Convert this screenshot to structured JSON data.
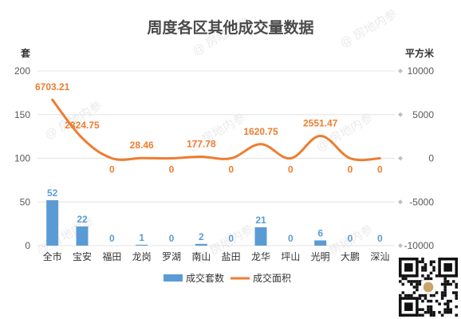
{
  "chart_data": {
    "type": "bar+line",
    "title": "周度各区其他成交量数据",
    "left_unit": "套",
    "right_unit": "平方米",
    "categories": [
      "全市",
      "宝安",
      "福田",
      "龙岗",
      "罗湖",
      "南山",
      "盐田",
      "龙华",
      "坪山",
      "光明",
      "大鹏",
      "深汕"
    ],
    "left_axis": {
      "min": 0,
      "max": 200,
      "ticks": [
        "0",
        "50",
        "100",
        "150",
        "200"
      ]
    },
    "right_axis": {
      "min": -10000,
      "max": 10000,
      "ticks": [
        "-10000",
        "-5000",
        "0",
        "5000",
        "10000"
      ]
    },
    "series": [
      {
        "name": "成交套数",
        "type": "bar",
        "axis": "left",
        "color": "#5b9bd5",
        "values": [
          52,
          22,
          0,
          1,
          0,
          2,
          0,
          21,
          0,
          6,
          0,
          0
        ],
        "labels": [
          "52",
          "22",
          "0",
          "1",
          "0",
          "2",
          "0",
          "21",
          "0",
          "6",
          "0",
          "0"
        ]
      },
      {
        "name": "成交面积",
        "type": "line",
        "axis": "right",
        "color": "#ed7d31",
        "values": [
          6703.21,
          2324.75,
          0,
          28.46,
          0,
          177.78,
          0,
          1620.75,
          0,
          2551.47,
          0,
          0
        ],
        "labels": [
          "6703.21",
          "2324.75",
          "0",
          "28.46",
          "0",
          "177.78",
          "0",
          "1620.75",
          "0",
          "2551.47",
          "0",
          "0"
        ]
      }
    ],
    "legend_position": "bottom",
    "grid": true
  },
  "watermark": "@ 房地内参"
}
